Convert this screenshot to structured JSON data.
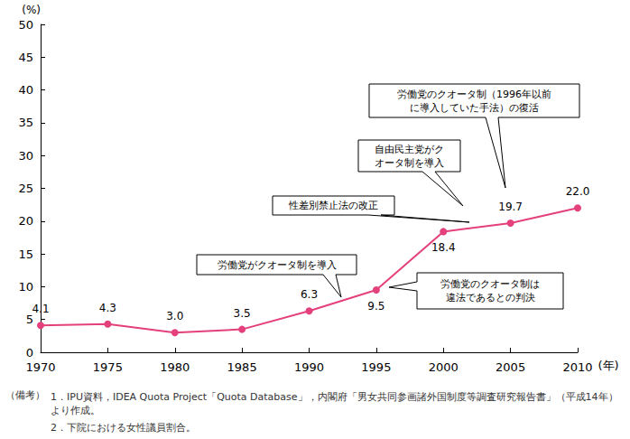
{
  "chart_data": {
    "type": "line",
    "x_label": "(年)",
    "y_label": "(%)",
    "x": [
      1970,
      1975,
      1980,
      1985,
      1990,
      1995,
      2000,
      2005,
      2010
    ],
    "values": [
      4.1,
      4.3,
      3.0,
      3.5,
      6.3,
      9.5,
      18.4,
      19.7,
      22.0
    ],
    "value_labels": [
      "4.1",
      "4.3",
      "3.0",
      "3.5",
      "6.3",
      "9.5",
      "18.4",
      "19.7",
      "22.0"
    ],
    "data_labels": true,
    "color": "#e4407b",
    "marker": "circle",
    "xlim": [
      1970,
      2010
    ],
    "xticks": [
      1970,
      1975,
      1980,
      1985,
      1990,
      1995,
      2000,
      2005,
      2010
    ],
    "ylim": [
      0,
      50
    ],
    "yticks": [
      0,
      5,
      10,
      15,
      20,
      25,
      30,
      35,
      40,
      45,
      50
    ],
    "grid": false,
    "annotations": [
      "労働党がクオータ制を導入",
      "労働党のクオータ制は\n違法であるとの判決",
      "性差別禁止法の改正",
      "自由民主党がク\nオータ制を導入",
      "労働党のクオータ制（1996年以前\nに導入していた手法）の復活"
    ],
    "notes_heading": "（備考）",
    "notes": [
      "1．IPU資料，IDEA Quota Project「Quota Database」，内閣府「男女共同参画諸外国制度等調査研究報告書」（平成14年）より作成。",
      "2．下院における女性議員割合。"
    ]
  }
}
